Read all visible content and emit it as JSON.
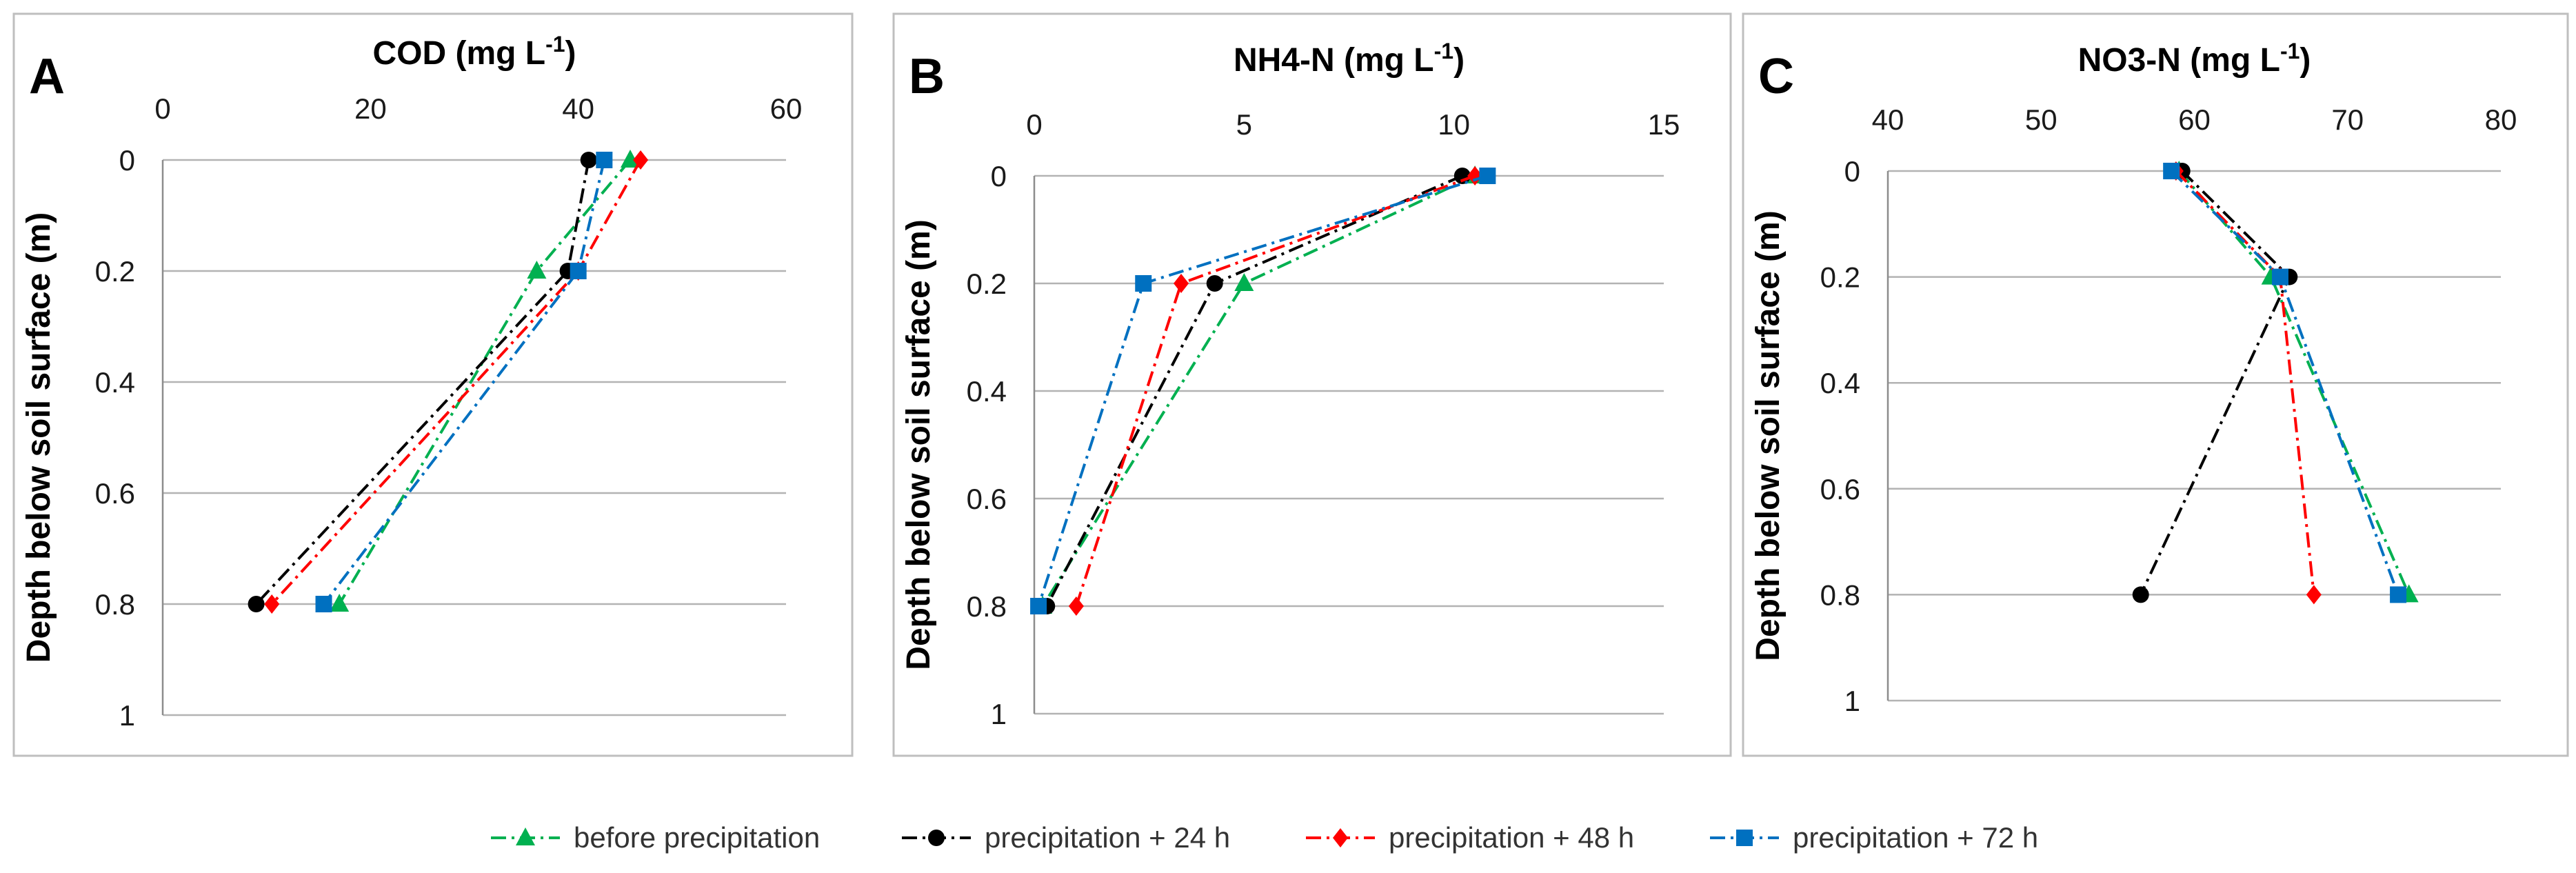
{
  "legend": [
    {
      "name": "before precipitation",
      "color": "#00b050",
      "marker": "triangle"
    },
    {
      "name": "precipitation + 24 h",
      "color": "#000000",
      "marker": "circle"
    },
    {
      "name": "precipitation + 48 h",
      "color": "#ff0000",
      "marker": "diamond"
    },
    {
      "name": "precipitation + 72 h",
      "color": "#0070c0",
      "marker": "square"
    }
  ],
  "chart_data": [
    {
      "type": "line",
      "panel": "A",
      "title": "COD (mg L-1)",
      "title_main": "COD (mg L",
      "title_sup": "-1",
      "title_end": ")",
      "xlabel": "COD (mg L-1)",
      "ylabel": "Depth below soil surface (m)",
      "xlim": [
        0,
        60
      ],
      "ylim": [
        0,
        1
      ],
      "y_inverted": true,
      "xticks": [
        "0",
        "20",
        "40",
        "60"
      ],
      "yticks": [
        "0",
        "0.2",
        "0.4",
        "0.6",
        "0.8",
        "1"
      ],
      "y": [
        0,
        0.2,
        0.8
      ],
      "series": [
        {
          "name": "before precipitation",
          "x": [
            45,
            36,
            17
          ]
        },
        {
          "name": "precipitation + 24 h",
          "x": [
            41,
            39,
            9
          ]
        },
        {
          "name": "precipitation + 48 h",
          "x": [
            46,
            40,
            10.5
          ]
        },
        {
          "name": "precipitation + 72 h",
          "x": [
            42.5,
            40,
            15.5
          ]
        }
      ]
    },
    {
      "type": "line",
      "panel": "B",
      "title": "NH4-N (mg L-1)",
      "title_main": "NH4-N (mg L",
      "title_sup": "-1",
      "title_end": ")",
      "xlabel": "NH4-N (mg L-1)",
      "ylabel": "Depth below soil surface (m)",
      "xlim": [
        0,
        15
      ],
      "ylim": [
        0,
        1
      ],
      "y_inverted": true,
      "xticks": [
        "0",
        "5",
        "10",
        "15"
      ],
      "yticks": [
        "0",
        "0.2",
        "0.4",
        "0.6",
        "0.8",
        "1"
      ],
      "y": [
        0,
        0.2,
        0.8
      ],
      "series": [
        {
          "name": "before precipitation",
          "x": [
            10.5,
            5.0,
            0.2
          ]
        },
        {
          "name": "precipitation + 24 h",
          "x": [
            10.2,
            4.3,
            0.3
          ]
        },
        {
          "name": "precipitation + 48 h",
          "x": [
            10.5,
            3.5,
            1.0
          ]
        },
        {
          "name": "precipitation + 72 h",
          "x": [
            10.8,
            2.6,
            0.1
          ]
        }
      ]
    },
    {
      "type": "line",
      "panel": "C",
      "title": "NO3-N (mg L-1)",
      "title_main": "NO3-N (mg L",
      "title_sup": "-1",
      "title_end": ")",
      "xlabel": "NO3-N (mg L-1)",
      "ylabel": "Depth below soil surface (m)",
      "xlim": [
        40,
        80
      ],
      "ylim": [
        0,
        1
      ],
      "y_inverted": true,
      "xticks": [
        "40",
        "50",
        "60",
        "70",
        "80"
      ],
      "yticks": [
        "0",
        "0.2",
        "0.4",
        "0.6",
        "0.8",
        "1"
      ],
      "y": [
        0,
        0.2,
        0.8
      ],
      "series": [
        {
          "name": "before precipitation",
          "x": [
            59,
            65,
            74
          ]
        },
        {
          "name": "precipitation + 24 h",
          "x": [
            59.2,
            66.2,
            56.5
          ]
        },
        {
          "name": "precipitation + 48 h",
          "x": [
            58.8,
            65.6,
            67.8
          ]
        },
        {
          "name": "precipitation + 72 h",
          "x": [
            58.5,
            65.6,
            73.3
          ]
        }
      ]
    }
  ]
}
